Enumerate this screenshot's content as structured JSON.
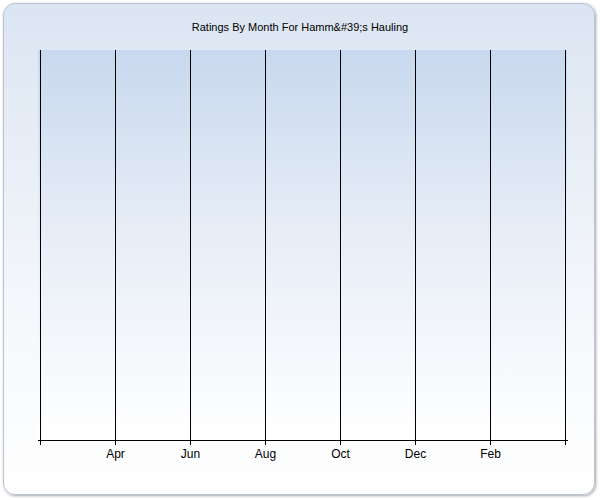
{
  "chart_data": {
    "type": "line",
    "title": "Ratings By Month For Hamm&#39;s Hauling",
    "categories": [
      null,
      "Apr",
      "Jun",
      "Aug",
      "Oct",
      "Dec",
      "Feb",
      null
    ],
    "values": [
      null,
      null,
      null,
      null,
      null,
      null,
      null,
      null
    ],
    "grid": true,
    "tick_labels": "x"
  }
}
